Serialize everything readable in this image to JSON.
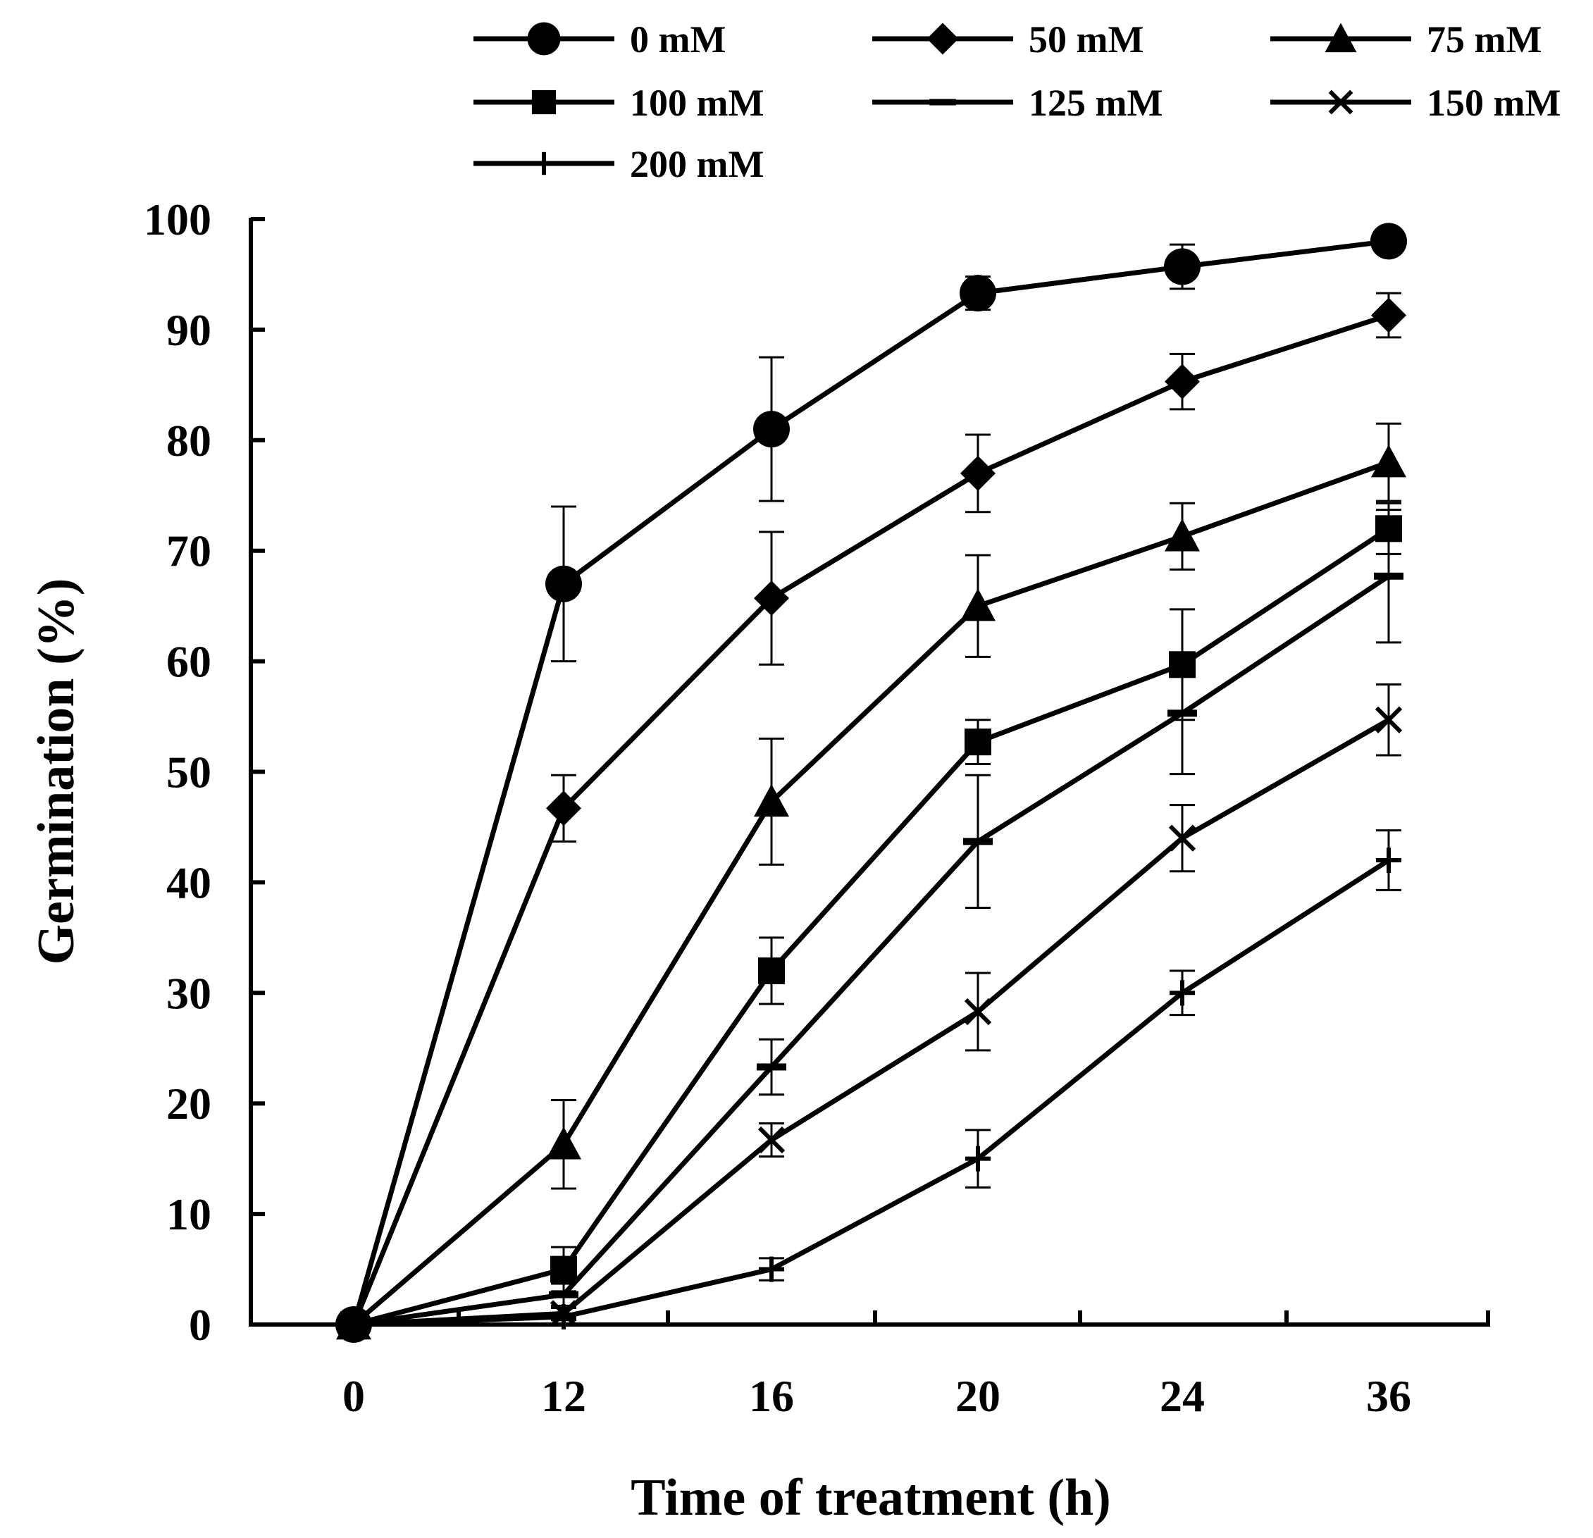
{
  "chart_data": {
    "type": "line",
    "title": "",
    "xlabel": "Time of treatment (h)",
    "ylabel": "Germination (%)",
    "categories": [
      "0",
      "12",
      "16",
      "20",
      "24",
      "36"
    ],
    "ylim": [
      0,
      100
    ],
    "yticks": [
      "0",
      "10",
      "20",
      "30",
      "40",
      "50",
      "60",
      "70",
      "80",
      "90",
      "100"
    ],
    "grid": false,
    "legend_position": "top",
    "series": [
      {
        "name": "0 mM",
        "marker": "circle",
        "values": [
          0,
          67,
          81,
          93.3,
          95.7,
          98
        ],
        "errors": [
          0,
          7,
          6.5,
          1.5,
          2,
          1
        ]
      },
      {
        "name": "50 mM",
        "marker": "diamond",
        "values": [
          0,
          46.7,
          65.7,
          77,
          85.3,
          91.3
        ],
        "errors": [
          0,
          3,
          6,
          3.5,
          2.5,
          2
        ]
      },
      {
        "name": "75 mM",
        "marker": "triangle",
        "values": [
          0,
          16.3,
          47.3,
          65,
          71.3,
          78
        ],
        "errors": [
          0,
          4,
          5.7,
          4.6,
          3,
          3.5
        ]
      },
      {
        "name": "100 mM",
        "marker": "square",
        "values": [
          0,
          5,
          32,
          52.7,
          59.7,
          72
        ],
        "errors": [
          0,
          2,
          3,
          2,
          5,
          2.3
        ]
      },
      {
        "name": "125 mM",
        "marker": "dash",
        "values": [
          0,
          2.7,
          23.3,
          43.7,
          55.3,
          67.7
        ],
        "errors": [
          0,
          1,
          2.5,
          6,
          5.5,
          6
        ]
      },
      {
        "name": "150 mM",
        "marker": "x",
        "values": [
          0,
          1,
          16.7,
          28.3,
          44,
          54.7
        ],
        "errors": [
          0,
          0.5,
          1.5,
          3.5,
          3,
          3.2
        ]
      },
      {
        "name": "200 mM",
        "marker": "plus",
        "values": [
          0,
          0.7,
          5,
          15,
          30,
          42
        ],
        "errors": [
          0,
          0.3,
          1,
          2.6,
          2,
          2.7
        ]
      }
    ]
  }
}
